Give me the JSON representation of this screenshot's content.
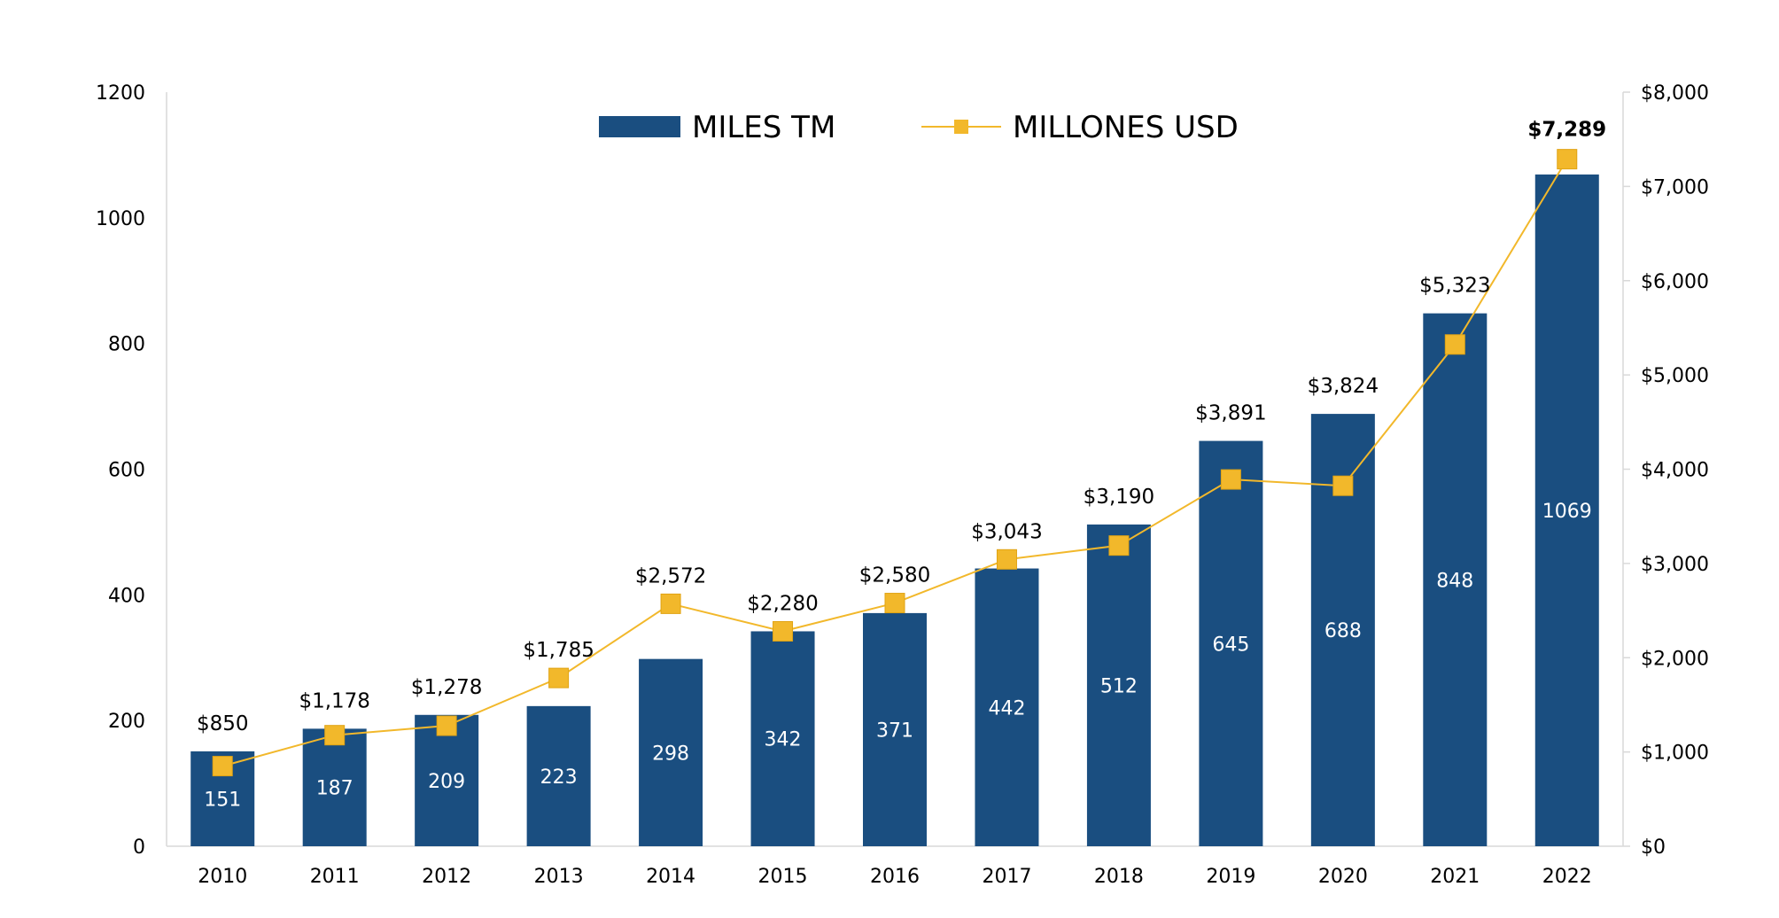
{
  "chart_data": {
    "type": "bar",
    "categories": [
      "2010",
      "2011",
      "2012",
      "2013",
      "2014",
      "2015",
      "2016",
      "2017",
      "2018",
      "2019",
      "2020",
      "2021",
      "2022"
    ],
    "series": [
      {
        "name": "MILES TM",
        "type": "bar",
        "axis": "left",
        "color": "#1a4e80",
        "values": [
          151,
          187,
          209,
          223,
          298,
          342,
          371,
          442,
          512,
          645,
          688,
          848,
          1069
        ]
      },
      {
        "name": "MILLONES USD",
        "type": "line",
        "axis": "right",
        "color": "#f2b82b",
        "marker": "square",
        "values": [
          850,
          1178,
          1278,
          1785,
          2572,
          2280,
          2580,
          3043,
          3190,
          3891,
          3824,
          5323,
          7289
        ],
        "labels": [
          "$850",
          "$1,178",
          "$1,278",
          "$1,785",
          "$2,572",
          "$2,280",
          "$2,580",
          "$3,043",
          "$3,190",
          "$3,891",
          "$3,824",
          "$5,323",
          "$7,289"
        ]
      }
    ],
    "y_left": {
      "range": [
        0,
        1200
      ],
      "ticks": [
        "0",
        "200",
        "400",
        "600",
        "800",
        "1000",
        "1200"
      ]
    },
    "y_right": {
      "range": [
        0,
        8000
      ],
      "ticks": [
        "$0",
        "$1,000",
        "$2,000",
        "$3,000",
        "$4,000",
        "$5,000",
        "$6,000",
        "$7,000",
        "$8,000"
      ]
    },
    "title": "",
    "xlabel": "",
    "ylabel": "",
    "legend": "top-center",
    "grid": false
  }
}
